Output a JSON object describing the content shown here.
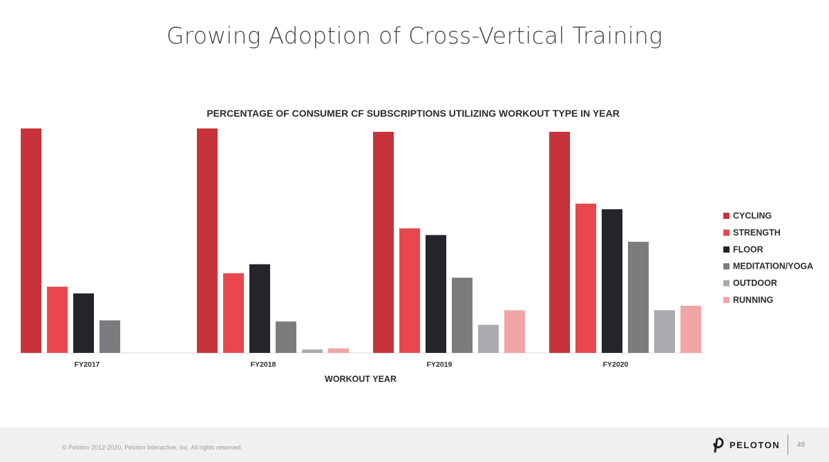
{
  "slide": {
    "title": "Growing Adoption of Cross-Vertical Training"
  },
  "chart_data": {
    "type": "bar",
    "title": "PERCENTAGE OF CONSUMER CF SUBSCRIPTIONS UTILIZING WORKOUT TYPE IN YEAR",
    "xlabel": "WORKOUT YEAR",
    "ylabel": "",
    "ylim": [
      0,
      100
    ],
    "grid": false,
    "legend_position": "right",
    "categories": [
      "FY2017",
      "FY2018",
      "FY2019",
      "FY2020"
    ],
    "series": [
      {
        "name": "CYCLING",
        "color": "#c8323a",
        "values": [
          100,
          100,
          98.5,
          98.5
        ]
      },
      {
        "name": "STRENGTH",
        "color": "#e8474e",
        "values": [
          29.5,
          35.5,
          55.5,
          66.5
        ]
      },
      {
        "name": "FLOOR",
        "color": "#23252a",
        "values": [
          26.5,
          39.5,
          52.5,
          64
        ]
      },
      {
        "name": "MEDITATION/YOGA",
        "color": "#7b7c80",
        "values": [
          14.5,
          14,
          33.5,
          49.5
        ]
      },
      {
        "name": "OUTDOOR",
        "color": "#a9abaf",
        "values": [
          0,
          1.5,
          12.5,
          19
        ]
      },
      {
        "name": "RUNNING",
        "color": "#f0a5a7",
        "values": [
          0,
          2,
          19,
          21
        ]
      }
    ]
  },
  "footer": {
    "copyright": "© Peloton 2012-2020, Peloton Interactive, Inc. All rights reserved.",
    "brand_name": "PELOTON",
    "brand_icon": "peloton-logo-icon",
    "page_number": "49",
    "background": "#f0f0f1"
  }
}
